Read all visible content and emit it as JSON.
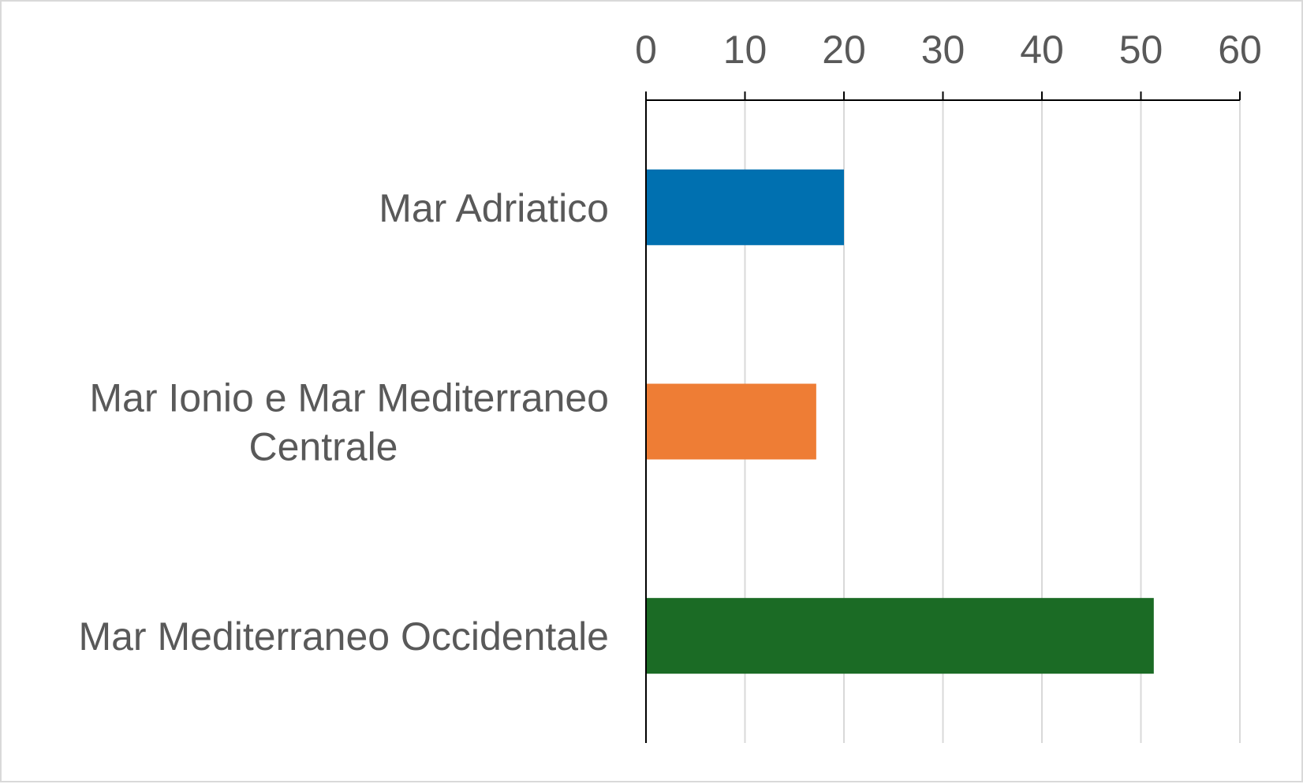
{
  "chart_data": {
    "type": "bar",
    "orientation": "horizontal",
    "x_axis_position": "top",
    "categories": [
      [
        "Mar Adriatico"
      ],
      [
        "Mar Ionio e Mar Mediterraneo",
        "Centrale"
      ],
      [
        "Mar Mediterraneo Occidentale"
      ]
    ],
    "values": [
      20,
      17.2,
      51.3
    ],
    "colors": [
      "#0070b0",
      "#ee7d35",
      "#1b6b25"
    ],
    "xlim": [
      0,
      60
    ],
    "ticks": [
      "0",
      "10",
      "20",
      "30",
      "40",
      "50",
      "60"
    ],
    "tick_values": [
      0,
      10,
      20,
      30,
      40,
      50,
      60
    ],
    "grid": true,
    "title": "",
    "xlabel": "",
    "ylabel": "",
    "legend": "none"
  }
}
